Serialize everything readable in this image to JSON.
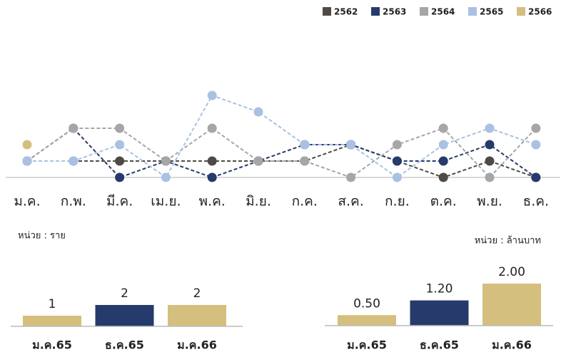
{
  "chart_data": [
    {
      "type": "line",
      "categories": [
        "ม.ค.",
        "ก.พ.",
        "มี.ค.",
        "เม.ย.",
        "พ.ค.",
        "มิ.ย.",
        "ก.ค.",
        "ส.ค.",
        "ก.ย.",
        "ต.ค.",
        "พ.ย.",
        "ธ.ค."
      ],
      "ylim": [
        0,
        5
      ],
      "series": [
        {
          "name": "2562",
          "color": "#4f4a45",
          "values": [
            1,
            1,
            1,
            1,
            1,
            1,
            1,
            2,
            1,
            0,
            1,
            0
          ]
        },
        {
          "name": "2563",
          "color": "#263a6b",
          "values": [
            1,
            3,
            0,
            1,
            0,
            1,
            2,
            2,
            1,
            1,
            2,
            0
          ]
        },
        {
          "name": "2564",
          "color": "#a6a6a6",
          "values": [
            1,
            3,
            3,
            1,
            3,
            1,
            1,
            0,
            2,
            3,
            0,
            3
          ]
        },
        {
          "name": "2565",
          "color": "#a9c1e3",
          "values": [
            1,
            1,
            2,
            0,
            5,
            4,
            2,
            2,
            0,
            2,
            3,
            2
          ]
        },
        {
          "name": "2566",
          "color": "#d4bf7e",
          "values": [
            2,
            null,
            null,
            null,
            null,
            null,
            null,
            null,
            null,
            null,
            null,
            null
          ]
        }
      ],
      "legend": "top-right"
    },
    {
      "type": "bar",
      "ylabel": "หน่วย : ราย",
      "categories": [
        "ม.ค.65",
        "ธ.ค.65",
        "ม.ค.66"
      ],
      "values": [
        1,
        2,
        2
      ],
      "colors": [
        "#d4bf7e",
        "#263a6b",
        "#d4bf7e"
      ],
      "ylim": [
        0,
        2
      ]
    },
    {
      "type": "bar",
      "ylabel": "หน่วย : ล้านบาท",
      "categories": [
        "ม.ค.65",
        "ธ.ค.65",
        "ม.ค.66"
      ],
      "values": [
        0.5,
        1.2,
        2.0
      ],
      "value_labels": [
        "0.50",
        "1.20",
        "2.00"
      ],
      "colors": [
        "#d4bf7e",
        "#263a6b",
        "#d4bf7e"
      ],
      "ylim": [
        0,
        2
      ]
    }
  ]
}
